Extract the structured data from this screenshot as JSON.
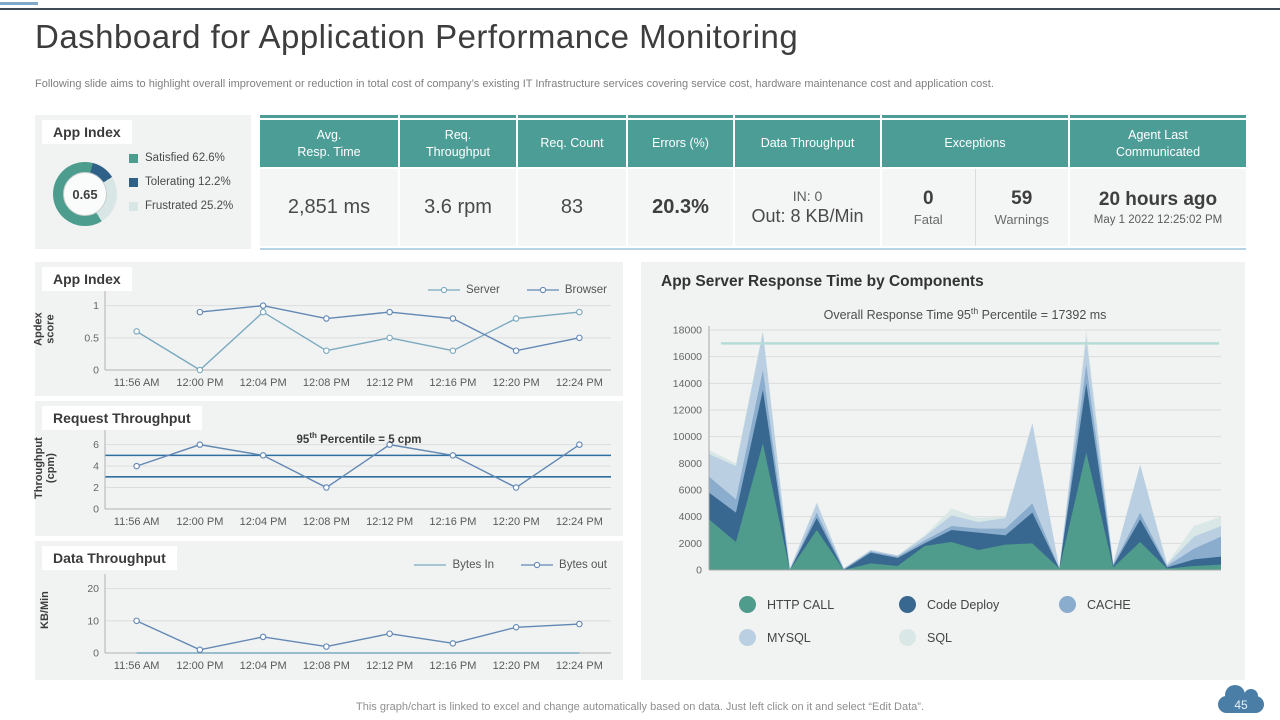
{
  "slide": {
    "title": "Dashboard for Application Performance Monitoring",
    "subtitle": "Following slide aims to highlight overall improvement or reduction in  total cost of company’s existing IT Infrastructure services covering service cost, hardware maintenance cost and application cost.",
    "footer": "This graph/chart is linked to excel and change automatically based on data. Just left click on it and select “Edit Data”.",
    "page_number": "45"
  },
  "app_index_summary": {
    "title": "App Index",
    "score": "0.65",
    "legend": [
      {
        "label": "Satisfied 62.6%",
        "color": "#4d9d8f"
      },
      {
        "label": "Tolerating 12.2%",
        "color": "#2f6188"
      },
      {
        "label": "Frustrated 25.2%",
        "color": "#d8e7e6"
      }
    ]
  },
  "kpi_table": {
    "header_color": "#4d9d97",
    "columns": {
      "avg_resp_time": {
        "header": "Avg.\nResp. Time",
        "value": "2,851 ms"
      },
      "req_throughput": {
        "header": "Req.\nThroughput",
        "value": "3.6 rpm"
      },
      "req_count": {
        "header": "Req. Count",
        "value": "83"
      },
      "errors": {
        "header": "Errors (%)",
        "value": "20.3%"
      },
      "data_throughput": {
        "header": "Data Throughput",
        "in_line": "IN: 0",
        "out_line": "Out: 8 KB/Min"
      },
      "exceptions": {
        "header": "Exceptions",
        "fatal": {
          "value": "0",
          "label": "Fatal"
        },
        "warnings": {
          "value": "59",
          "label": "Warnings"
        }
      },
      "agent": {
        "header": "Agent Last\nCommunicated",
        "value": "20 hours ago",
        "date": "May 1 2022 12:25:02 PM"
      }
    }
  },
  "chart_data": [
    {
      "type": "line",
      "title": "App Index",
      "ylabel": "Apdex score",
      "categories": [
        "11:56 AM",
        "12:00 PM",
        "12:04 PM",
        "12:08 PM",
        "12:12 PM",
        "12:16 PM",
        "12:20 PM",
        "12:24 PM"
      ],
      "series": [
        {
          "name": "Server",
          "color": "#7aa9bf",
          "markers": true,
          "values": [
            0.6,
            0,
            0.9,
            0.3,
            0.5,
            0.3,
            0.8,
            0.9
          ]
        },
        {
          "name": "Browser",
          "color": "#6288b4",
          "markers": true,
          "values": [
            null,
            0.9,
            1,
            0.8,
            0.9,
            0.8,
            0.3,
            0.5
          ]
        }
      ],
      "ylim": [
        0,
        1.15
      ],
      "yticks": [
        0,
        0.5,
        1
      ],
      "grid": true,
      "legend_position": "top-right"
    },
    {
      "type": "line",
      "title": "Request Throughput",
      "ylabel": "Throughput (cpm)",
      "categories": [
        "11:56 AM",
        "12:00 PM",
        "12:04 PM",
        "12:08 PM",
        "12:12 PM",
        "12:16 PM",
        "12:20 PM",
        "12:24 PM"
      ],
      "series": [
        {
          "name": "Throughput",
          "color": "#6288b4",
          "markers": true,
          "values": [
            4,
            6,
            5,
            2,
            6,
            5,
            2,
            6
          ]
        }
      ],
      "ref_lines": [
        {
          "value": 5,
          "color": "#2f6f9f"
        },
        {
          "value": 3,
          "color": "#2f6f9f"
        }
      ],
      "annotation": {
        "pre": "95",
        "sup": "th",
        "post": " Percentile = 5 cpm"
      },
      "ylim": [
        0,
        6.9
      ],
      "yticks": [
        0,
        2,
        4,
        6
      ],
      "grid": true
    },
    {
      "type": "line",
      "title": "Data Throughput",
      "ylabel": "KB/Min",
      "categories": [
        "11:56 AM",
        "12:00 PM",
        "12:04 PM",
        "12:08 PM",
        "12:12 PM",
        "12:16 PM",
        "12:20 PM",
        "12:24 PM"
      ],
      "series": [
        {
          "name": "Bytes In",
          "color": "#7aa9bf",
          "markers": false,
          "values": [
            0,
            0,
            0,
            0,
            0,
            0,
            0,
            0
          ]
        },
        {
          "name": "Bytes out",
          "color": "#6288b4",
          "markers": true,
          "values": [
            10,
            1,
            5,
            2,
            6,
            3,
            8,
            9
          ]
        }
      ],
      "ylim": [
        0,
        23
      ],
      "yticks": [
        0,
        10,
        20
      ],
      "grid": true,
      "legend_position": "top-right"
    },
    {
      "type": "area",
      "stacked": true,
      "title": "App  Server Response Time by Components",
      "annotation": {
        "pre": "Overall  Response Time 95",
        "sup": "th",
        "post": " Percentile = 17392  ms"
      },
      "x": [
        1,
        2,
        3,
        4,
        5,
        6,
        7,
        8,
        9,
        10,
        11,
        12,
        13,
        14,
        15,
        16,
        17,
        18,
        19,
        20
      ],
      "series": [
        {
          "name": "HTTP  CALL",
          "color": "#4f9b8c",
          "values": [
            3800,
            2100,
            9500,
            0,
            3000,
            0,
            500,
            300,
            1800,
            2100,
            1500,
            1900,
            2000,
            100,
            8800,
            200,
            2100,
            100,
            300,
            400
          ]
        },
        {
          "name": "Code Deploy",
          "color": "#38688f",
          "values": [
            2000,
            2200,
            4000,
            0,
            900,
            0,
            800,
            600,
            200,
            900,
            1300,
            700,
            2300,
            0,
            5200,
            100,
            1700,
            100,
            500,
            600
          ]
        },
        {
          "name": "CACHE",
          "color": "#8aaccd",
          "values": [
            1200,
            1000,
            1500,
            0,
            400,
            100,
            100,
            100,
            200,
            300,
            300,
            500,
            700,
            0,
            1400,
            100,
            500,
            100,
            800,
            1500
          ]
        },
        {
          "name": "MYSQL",
          "color": "#bad0e2",
          "values": [
            1700,
            2500,
            2800,
            100,
            700,
            0,
            100,
            100,
            300,
            800,
            500,
            800,
            6000,
            0,
            2000,
            100,
            3600,
            100,
            900,
            800
          ]
        },
        {
          "name": "SQL",
          "color": "#d9e8e6",
          "values": [
            300,
            200,
            200,
            0,
            100,
            0,
            0,
            0,
            100,
            500,
            300,
            100,
            0,
            0,
            600,
            0,
            0,
            100,
            800,
            700
          ]
        }
      ],
      "ref_line": {
        "value": 17000,
        "color": "#b7dcd8"
      },
      "ylim": [
        0,
        18000
      ],
      "yticks": [
        0,
        2000,
        4000,
        6000,
        8000,
        10000,
        12000,
        14000,
        16000,
        18000
      ],
      "grid": true,
      "legend_position": "bottom"
    }
  ]
}
